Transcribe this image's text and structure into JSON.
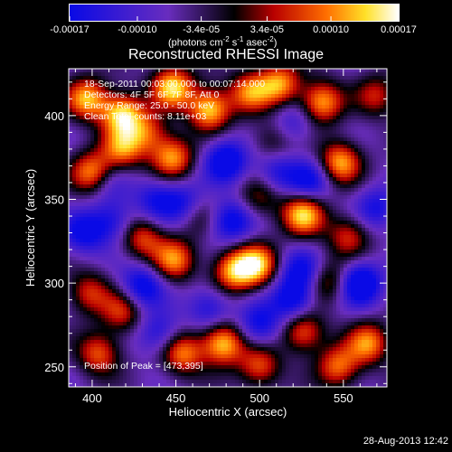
{
  "colorbar": {
    "ticks": [
      "-0.00017",
      "-0.00010",
      "-3.4e-05",
      "3.4e-05",
      "0.00010",
      "0.00017"
    ],
    "tick_values": [
      -0.00017,
      -0.0001,
      -3.4e-05,
      3.4e-05,
      0.0001,
      0.00017
    ],
    "range": [
      -0.00017,
      0.00017
    ],
    "units_main": "(photons cm",
    "units_sup1": "-2",
    "units_mid": " s",
    "units_sup2": "-1",
    "units_mid2": " asec",
    "units_sup3": "-2",
    "units_end": ")"
  },
  "chart_data": {
    "type": "heatmap",
    "title": "Reconstructed RHESSI Image",
    "xlabel": "Heliocentric X (arcsec)",
    "ylabel": "Heliocentric Y (arcsec)",
    "xlim": [
      386,
      576
    ],
    "ylim": [
      238,
      428
    ],
    "xticks": [
      400,
      450,
      500,
      550
    ],
    "yticks": [
      250,
      300,
      350,
      400
    ],
    "annotations": {
      "time": "18-Sep-2011 00:03:00.000 to 00:07:14.000",
      "detectors": "Detectors: 4F 5F 6F 7F 8F, Att 0",
      "energy": "Energy Range: 25.0 - 50.0 keV",
      "method": "Clean     Total counts: 8.11e+03",
      "peak": "Position of Peak = [473,395]"
    },
    "blobs": [
      {
        "x": 397,
        "y": 410,
        "v": 0.9
      },
      {
        "x": 418,
        "y": 401,
        "v": 1.0
      },
      {
        "x": 448,
        "y": 417,
        "v": 1.0
      },
      {
        "x": 470,
        "y": 404,
        "v": 1.0
      },
      {
        "x": 494,
        "y": 414,
        "v": 0.75
      },
      {
        "x": 512,
        "y": 419,
        "v": 0.85
      },
      {
        "x": 537,
        "y": 408,
        "v": 0.9
      },
      {
        "x": 400,
        "y": 366,
        "v": 0.85
      },
      {
        "x": 418,
        "y": 380,
        "v": 0.75
      },
      {
        "x": 448,
        "y": 375,
        "v": 0.85
      },
      {
        "x": 548,
        "y": 372,
        "v": 0.9
      },
      {
        "x": 526,
        "y": 341,
        "v": 1.0
      },
      {
        "x": 553,
        "y": 328,
        "v": 0.6
      },
      {
        "x": 430,
        "y": 327,
        "v": 0.65
      },
      {
        "x": 449,
        "y": 314,
        "v": 0.8
      },
      {
        "x": 498,
        "y": 311,
        "v": 0.95
      },
      {
        "x": 484,
        "y": 307,
        "v": 0.85
      },
      {
        "x": 541,
        "y": 301,
        "v": 0.55
      },
      {
        "x": 398,
        "y": 294,
        "v": 0.6
      },
      {
        "x": 404,
        "y": 258,
        "v": 0.7
      },
      {
        "x": 418,
        "y": 283,
        "v": 0.6
      },
      {
        "x": 454,
        "y": 258,
        "v": 0.8
      },
      {
        "x": 478,
        "y": 264,
        "v": 1.0
      },
      {
        "x": 500,
        "y": 250,
        "v": 0.7
      },
      {
        "x": 526,
        "y": 271,
        "v": 0.75
      },
      {
        "x": 547,
        "y": 250,
        "v": 0.75
      },
      {
        "x": 565,
        "y": 264,
        "v": 0.8
      },
      {
        "x": 433,
        "y": 390,
        "v": 0.6
      },
      {
        "x": 500,
        "y": 351,
        "v": 0.45
      },
      {
        "x": 462,
        "y": 341,
        "v": 0.4
      },
      {
        "x": 570,
        "y": 412,
        "v": 0.55
      },
      {
        "x": 508,
        "y": 385,
        "v": 0.4
      }
    ],
    "dips": [
      {
        "x": 480,
        "y": 373,
        "v": -0.8
      },
      {
        "x": 455,
        "y": 347,
        "v": -0.6
      },
      {
        "x": 483,
        "y": 337,
        "v": -0.7
      },
      {
        "x": 510,
        "y": 366,
        "v": -0.5
      },
      {
        "x": 530,
        "y": 361,
        "v": -0.6
      },
      {
        "x": 560,
        "y": 300,
        "v": -0.9
      },
      {
        "x": 525,
        "y": 307,
        "v": -0.6
      },
      {
        "x": 430,
        "y": 298,
        "v": -0.7
      },
      {
        "x": 395,
        "y": 330,
        "v": -0.6
      },
      {
        "x": 412,
        "y": 337,
        "v": -0.5
      },
      {
        "x": 470,
        "y": 285,
        "v": -0.5
      },
      {
        "x": 520,
        "y": 290,
        "v": -0.7
      },
      {
        "x": 440,
        "y": 270,
        "v": -0.5
      },
      {
        "x": 500,
        "y": 275,
        "v": -0.6
      },
      {
        "x": 570,
        "y": 345,
        "v": -0.5
      },
      {
        "x": 520,
        "y": 395,
        "v": -0.4
      },
      {
        "x": 410,
        "y": 360,
        "v": -0.3
      },
      {
        "x": 438,
        "y": 350,
        "v": -0.5
      }
    ]
  },
  "footer": {
    "timestamp": "28-Aug-2013 12:42"
  }
}
